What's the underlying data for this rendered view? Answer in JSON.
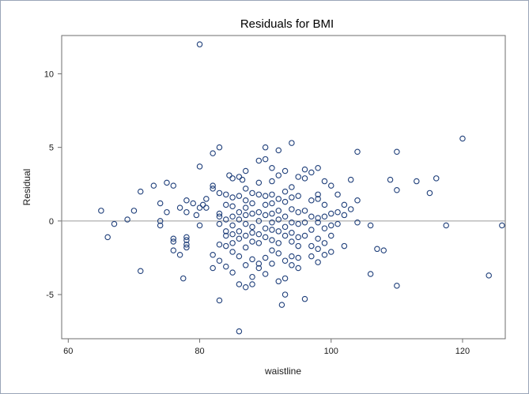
{
  "chart_data": {
    "type": "scatter",
    "title": "Residuals for BMI",
    "xlabel": "waistline",
    "ylabel": "Residual",
    "xlim": [
      59,
      126.5
    ],
    "ylim": [
      -8,
      12.6
    ],
    "xticks": [
      60,
      80,
      100,
      120
    ],
    "yticks": [
      -5,
      0,
      5,
      10
    ],
    "reference_line_y": 0,
    "grid": false,
    "legend": "none",
    "marker": "open-circle",
    "colors": {
      "marker": "#1f3f7a",
      "reference": "#9a9a9a",
      "frame": "#6e6e6e",
      "border": "#9aa5b8"
    },
    "points": [
      [
        80,
        12.0
      ],
      [
        65,
        0.7
      ],
      [
        66,
        -1.1
      ],
      [
        67,
        -0.2
      ],
      [
        69,
        0.1
      ],
      [
        70,
        0.7
      ],
      [
        71,
        2.0
      ],
      [
        71,
        -3.4
      ],
      [
        73,
        2.4
      ],
      [
        74,
        1.2
      ],
      [
        74,
        0.0
      ],
      [
        74,
        -0.3
      ],
      [
        75,
        2.6
      ],
      [
        75,
        0.6
      ],
      [
        76,
        2.4
      ],
      [
        76,
        -1.2
      ],
      [
        76,
        -1.4
      ],
      [
        76,
        -2.0
      ],
      [
        77,
        0.9
      ],
      [
        77,
        -2.3
      ],
      [
        77.5,
        -3.9
      ],
      [
        78,
        1.4
      ],
      [
        78,
        0.6
      ],
      [
        78,
        -1.1
      ],
      [
        78,
        -1.3
      ],
      [
        78,
        -1.6
      ],
      [
        78,
        -1.8
      ],
      [
        79,
        1.2
      ],
      [
        79.5,
        0.4
      ],
      [
        80,
        3.7
      ],
      [
        80,
        0.9
      ],
      [
        80,
        -0.3
      ],
      [
        80.5,
        1.1
      ],
      [
        81,
        1.5
      ],
      [
        81,
        0.9
      ],
      [
        82,
        4.6
      ],
      [
        82,
        2.4
      ],
      [
        82,
        2.2
      ],
      [
        82,
        -2.3
      ],
      [
        82,
        -3.2
      ],
      [
        83,
        5.0
      ],
      [
        83,
        1.9
      ],
      [
        83,
        0.5
      ],
      [
        83,
        0.3
      ],
      [
        83,
        -0.2
      ],
      [
        83,
        -1.6
      ],
      [
        83,
        -2.7
      ],
      [
        83,
        -5.4
      ],
      [
        84,
        1.8
      ],
      [
        84,
        1.1
      ],
      [
        84,
        0.1
      ],
      [
        84,
        -0.7
      ],
      [
        84,
        -1.0
      ],
      [
        84,
        -1.7
      ],
      [
        84,
        -3.1
      ],
      [
        84.5,
        3.1
      ],
      [
        85,
        2.9
      ],
      [
        85,
        1.6
      ],
      [
        85,
        1.0
      ],
      [
        85,
        0.3
      ],
      [
        85,
        -0.3
      ],
      [
        85,
        -0.9
      ],
      [
        85,
        -1.5
      ],
      [
        85,
        -2.1
      ],
      [
        85,
        -3.5
      ],
      [
        86,
        3.0
      ],
      [
        86,
        1.7
      ],
      [
        86,
        0.6
      ],
      [
        86,
        0.1
      ],
      [
        86,
        -0.7
      ],
      [
        86,
        -1.2
      ],
      [
        86,
        -2.4
      ],
      [
        86,
        -4.3
      ],
      [
        86,
        -7.5
      ],
      [
        86.5,
        2.8
      ],
      [
        87,
        3.4
      ],
      [
        87,
        2.2
      ],
      [
        87,
        1.4
      ],
      [
        87,
        0.9
      ],
      [
        87,
        0.4
      ],
      [
        87,
        -0.2
      ],
      [
        87,
        -1.0
      ],
      [
        87,
        -1.8
      ],
      [
        87,
        -3.0
      ],
      [
        87,
        -4.5
      ],
      [
        88,
        1.9
      ],
      [
        88,
        1.2
      ],
      [
        88,
        0.5
      ],
      [
        88,
        -0.4
      ],
      [
        88,
        -0.8
      ],
      [
        88,
        -1.4
      ],
      [
        88,
        -2.6
      ],
      [
        88,
        -3.8
      ],
      [
        88,
        -4.3
      ],
      [
        89,
        4.1
      ],
      [
        89,
        2.6
      ],
      [
        89,
        1.8
      ],
      [
        89,
        0.6
      ],
      [
        89,
        0.0
      ],
      [
        89,
        -0.9
      ],
      [
        89,
        -1.5
      ],
      [
        89,
        -2.9
      ],
      [
        89,
        -3.2
      ],
      [
        90,
        5.0
      ],
      [
        90,
        4.2
      ],
      [
        90,
        1.7
      ],
      [
        90,
        1.1
      ],
      [
        90,
        0.4
      ],
      [
        90,
        -0.5
      ],
      [
        90,
        -1.1
      ],
      [
        90,
        -2.5
      ],
      [
        90,
        -3.6
      ],
      [
        91,
        3.6
      ],
      [
        91,
        2.7
      ],
      [
        91,
        1.8
      ],
      [
        91,
        1.2
      ],
      [
        91,
        0.5
      ],
      [
        91,
        -0.1
      ],
      [
        91,
        -0.6
      ],
      [
        91,
        -1.3
      ],
      [
        91,
        -2.0
      ],
      [
        91,
        -2.9
      ],
      [
        92,
        4.8
      ],
      [
        92,
        3.1
      ],
      [
        92,
        1.5
      ],
      [
        92,
        0.7
      ],
      [
        92,
        0.1
      ],
      [
        92,
        -0.7
      ],
      [
        92,
        -1.5
      ],
      [
        92,
        -2.2
      ],
      [
        92,
        -4.1
      ],
      [
        92.5,
        -5.7
      ],
      [
        93,
        3.4
      ],
      [
        93,
        2.0
      ],
      [
        93,
        1.3
      ],
      [
        93,
        0.3
      ],
      [
        93,
        -0.4
      ],
      [
        93,
        -1.0
      ],
      [
        93,
        -2.7
      ],
      [
        93,
        -3.9
      ],
      [
        93,
        -5.0
      ],
      [
        94,
        5.3
      ],
      [
        94,
        2.3
      ],
      [
        94,
        1.6
      ],
      [
        94,
        0.8
      ],
      [
        94,
        -0.1
      ],
      [
        94,
        -0.8
      ],
      [
        94,
        -1.4
      ],
      [
        94,
        -2.4
      ],
      [
        94,
        -3.0
      ],
      [
        95,
        3.0
      ],
      [
        95,
        1.7
      ],
      [
        95,
        0.6
      ],
      [
        95,
        -0.2
      ],
      [
        95,
        -1.1
      ],
      [
        95,
        -1.7
      ],
      [
        95,
        -2.5
      ],
      [
        95,
        -3.2
      ],
      [
        96,
        3.5
      ],
      [
        96,
        2.9
      ],
      [
        96,
        0.7
      ],
      [
        96,
        -0.1
      ],
      [
        96,
        -1.0
      ],
      [
        96,
        -5.3
      ],
      [
        97,
        3.3
      ],
      [
        97,
        1.4
      ],
      [
        97,
        0.3
      ],
      [
        97,
        -0.6
      ],
      [
        97,
        -1.7
      ],
      [
        97,
        -2.4
      ],
      [
        98,
        3.6
      ],
      [
        98,
        1.8
      ],
      [
        98,
        1.5
      ],
      [
        98,
        0.2
      ],
      [
        98,
        -0.1
      ],
      [
        98,
        -1.2
      ],
      [
        98,
        -1.9
      ],
      [
        98,
        -2.8
      ],
      [
        99,
        2.7
      ],
      [
        99,
        1.1
      ],
      [
        99,
        0.3
      ],
      [
        99,
        -0.5
      ],
      [
        99,
        -1.5
      ],
      [
        99,
        -2.3
      ],
      [
        100,
        2.4
      ],
      [
        100,
        0.5
      ],
      [
        100,
        -0.3
      ],
      [
        100,
        -1.0
      ],
      [
        100,
        -2.1
      ],
      [
        101,
        1.8
      ],
      [
        101,
        0.6
      ],
      [
        101,
        -0.2
      ],
      [
        102,
        1.1
      ],
      [
        102,
        0.4
      ],
      [
        102,
        -1.7
      ],
      [
        103,
        2.8
      ],
      [
        103,
        0.8
      ],
      [
        104,
        4.7
      ],
      [
        104,
        1.4
      ],
      [
        104,
        -0.1
      ],
      [
        106,
        -0.3
      ],
      [
        106,
        -3.6
      ],
      [
        107,
        -1.9
      ],
      [
        108,
        -2.0
      ],
      [
        109,
        2.8
      ],
      [
        110,
        4.7
      ],
      [
        110,
        2.1
      ],
      [
        110,
        -4.4
      ],
      [
        113,
        2.7
      ],
      [
        115,
        1.9
      ],
      [
        116,
        2.9
      ],
      [
        117.5,
        -0.3
      ],
      [
        120,
        5.6
      ],
      [
        124,
        -3.7
      ],
      [
        126,
        -0.3
      ]
    ]
  }
}
